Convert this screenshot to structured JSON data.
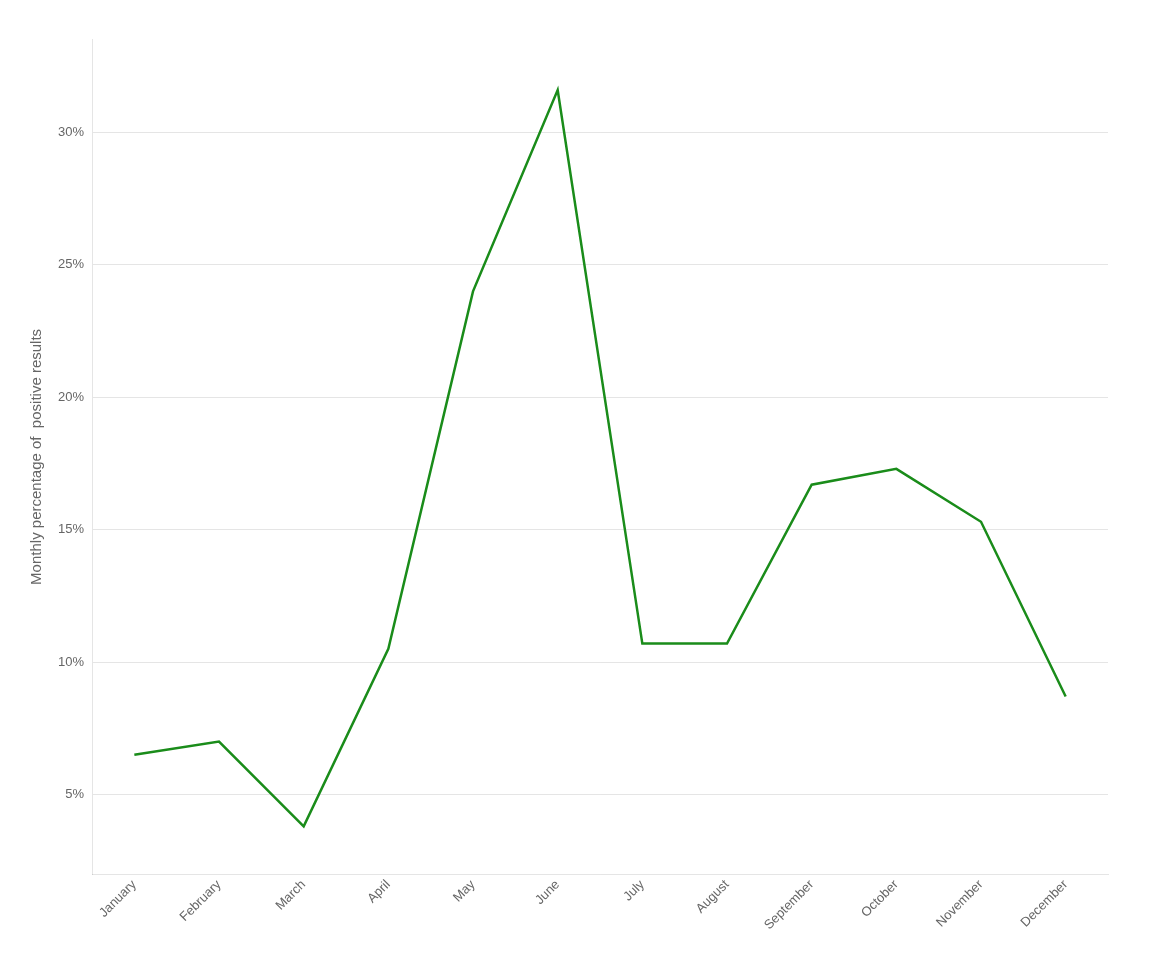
{
  "chart_data": {
    "type": "line",
    "y_label": "Monthly percentage of  positive results",
    "categories": [
      "January",
      "February",
      "March",
      "April",
      "May",
      "June",
      "July",
      "August",
      "September",
      "October",
      "November",
      "December"
    ],
    "values": [
      6.5,
      7.0,
      3.8,
      10.5,
      24.0,
      31.6,
      10.7,
      10.7,
      16.7,
      17.3,
      15.3,
      8.7
    ],
    "color": "#1a8c1a",
    "ylim": [
      2.0,
      33.5
    ],
    "yticks": [
      {
        "value": 5,
        "label": "5%"
      },
      {
        "value": 10,
        "label": "10%"
      },
      {
        "value": 15,
        "label": "15%"
      },
      {
        "value": 20,
        "label": "20%"
      },
      {
        "value": 25,
        "label": "25%"
      },
      {
        "value": 30,
        "label": "30%"
      }
    ],
    "grid": true
  }
}
